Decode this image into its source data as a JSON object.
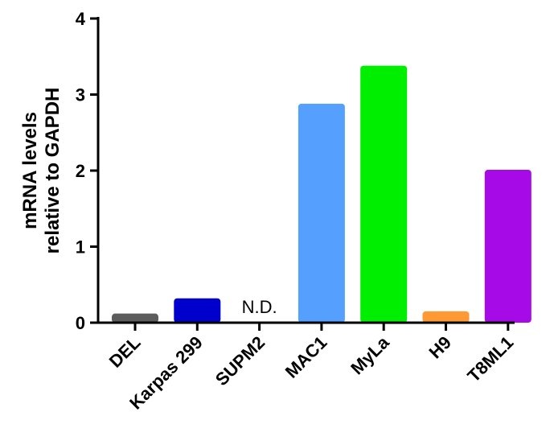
{
  "chart_data": {
    "type": "bar",
    "title": "",
    "xlabel": "",
    "ylabel_lines": [
      "mRNA levels",
      "relative to GAPDH"
    ],
    "ylim": [
      0,
      4
    ],
    "yticks": [
      "0",
      "1",
      "2",
      "3",
      "4"
    ],
    "grid": false,
    "legend": "none",
    "categories": [
      "DEL",
      "Karpas 299",
      "SUPM2",
      "MAC1",
      "MyLa",
      "H9",
      "T8ML1"
    ],
    "values": [
      0.12,
      0.32,
      0,
      2.88,
      3.38,
      0.15,
      2.01
    ],
    "colors": [
      "#5c5c5c",
      "#0000cc",
      "#ffffff",
      "#55a0ff",
      "#00ee00",
      "#ff9933",
      "#a60ae6"
    ],
    "annotations": [
      {
        "category": "SUPM2",
        "text": "N.D."
      }
    ]
  }
}
